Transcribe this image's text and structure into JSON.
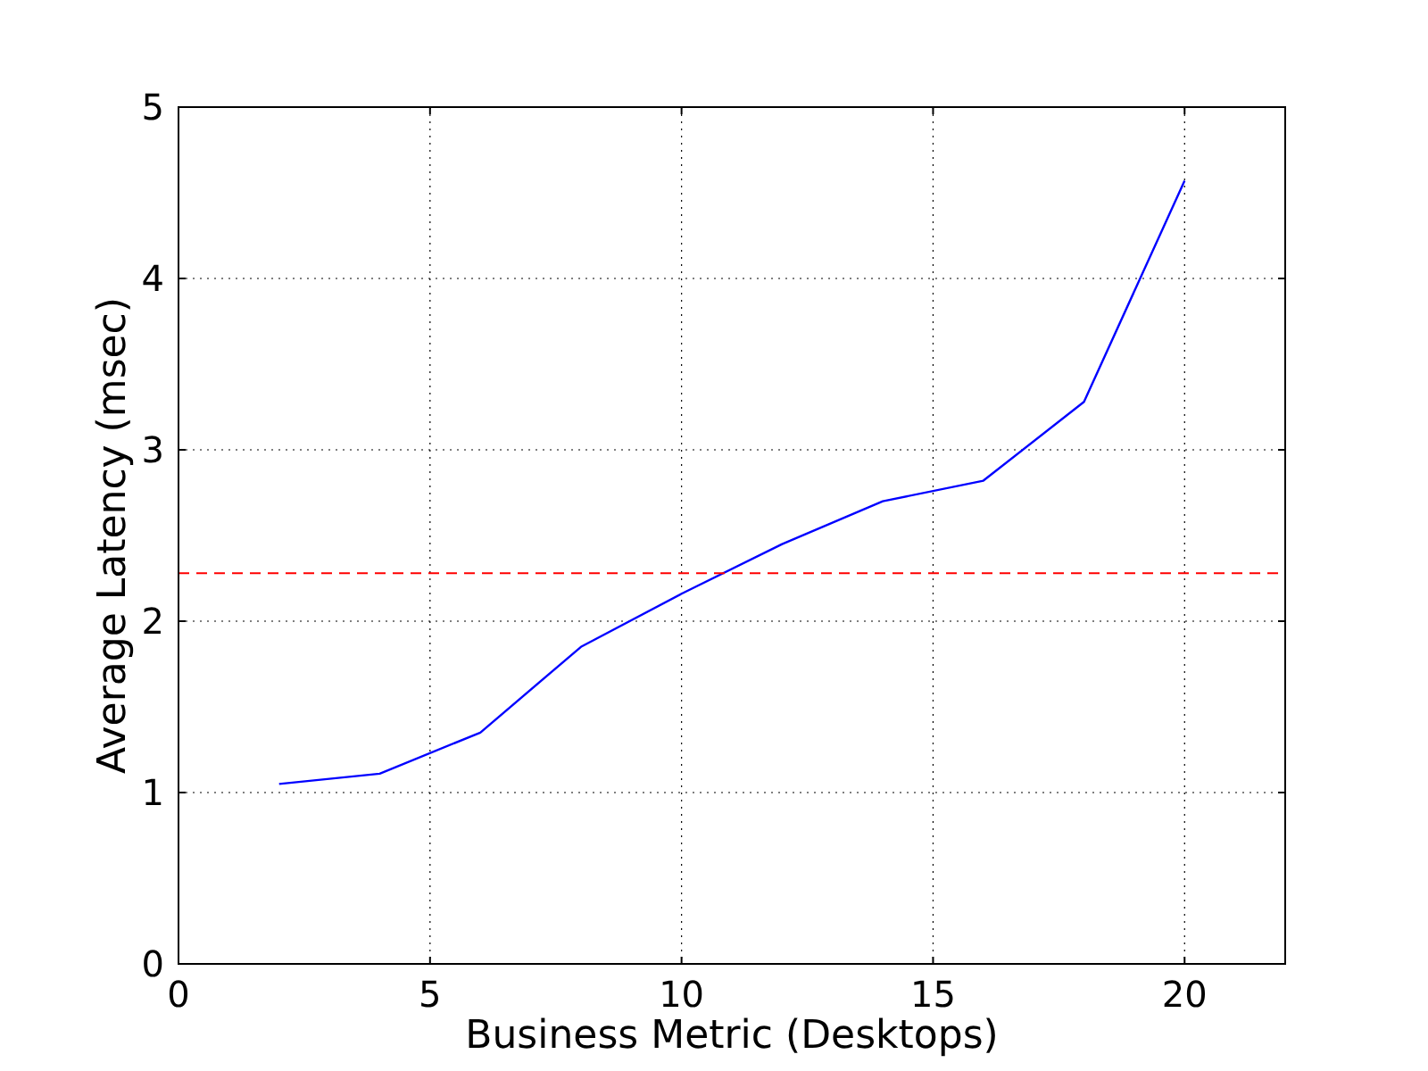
{
  "chart_data": {
    "type": "line",
    "xlabel": "Business Metric (Desktops)",
    "ylabel": "Average Latency (msec)",
    "x": [
      2,
      4,
      6,
      8,
      10,
      12,
      14,
      16,
      18,
      20
    ],
    "series": [
      {
        "color": "#0000ff",
        "values": [
          1.05,
          1.11,
          1.35,
          1.85,
          2.16,
          2.45,
          2.7,
          2.82,
          3.28,
          4.57
        ]
      }
    ],
    "xlim": [
      0,
      22
    ],
    "xticks": [
      0,
      5,
      10,
      15,
      20
    ],
    "ylim": [
      0,
      5
    ],
    "yticks": [
      0,
      1,
      2,
      3,
      4,
      5
    ],
    "grid": true,
    "ref_lines": [
      {
        "axis": "y",
        "value": 2.28,
        "color": "#ff0000",
        "line_style": "dashed"
      }
    ]
  }
}
